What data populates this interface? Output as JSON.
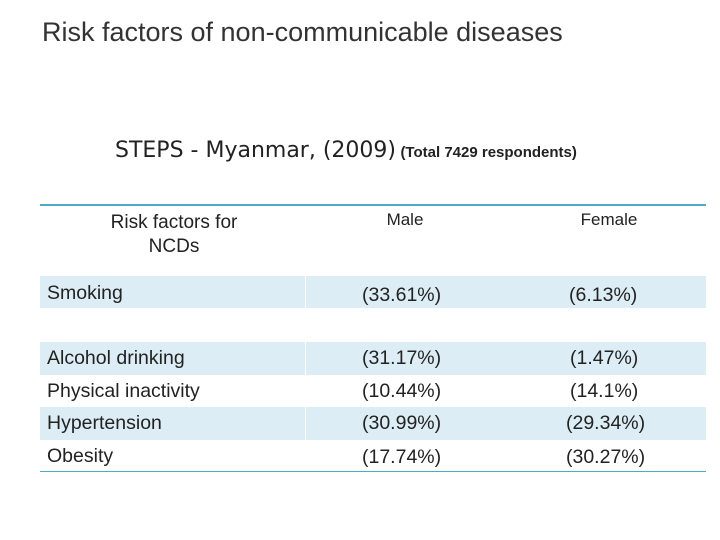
{
  "slide": {
    "title": "Risk factors of non-communicable diseases",
    "subtitle_main": "STEPS - Myanmar, (2009)",
    "subtitle_note": "(Total 7429 respondents)"
  },
  "table": {
    "headers": [
      "Risk factors for NCDs",
      "Male",
      "Female"
    ],
    "rows": [
      {
        "factor": "Smoking",
        "male": "(33.61%)",
        "female": "(6.13%)"
      },
      {
        "factor": "Alcohol drinking",
        "male": "(31.17%)",
        "female": "(1.47%)"
      },
      {
        "factor": "Physical inactivity",
        "male": "(10.44%)",
        "female": "(14.1%)"
      },
      {
        "factor": "Hypertension",
        "male": "(30.99%)",
        "female": "(29.34%)"
      },
      {
        "factor": "Obesity",
        "male": "(17.74%)",
        "female": "(30.27%)"
      }
    ],
    "accent_color": "#4bacc6",
    "band_color": "#dcedf5"
  }
}
